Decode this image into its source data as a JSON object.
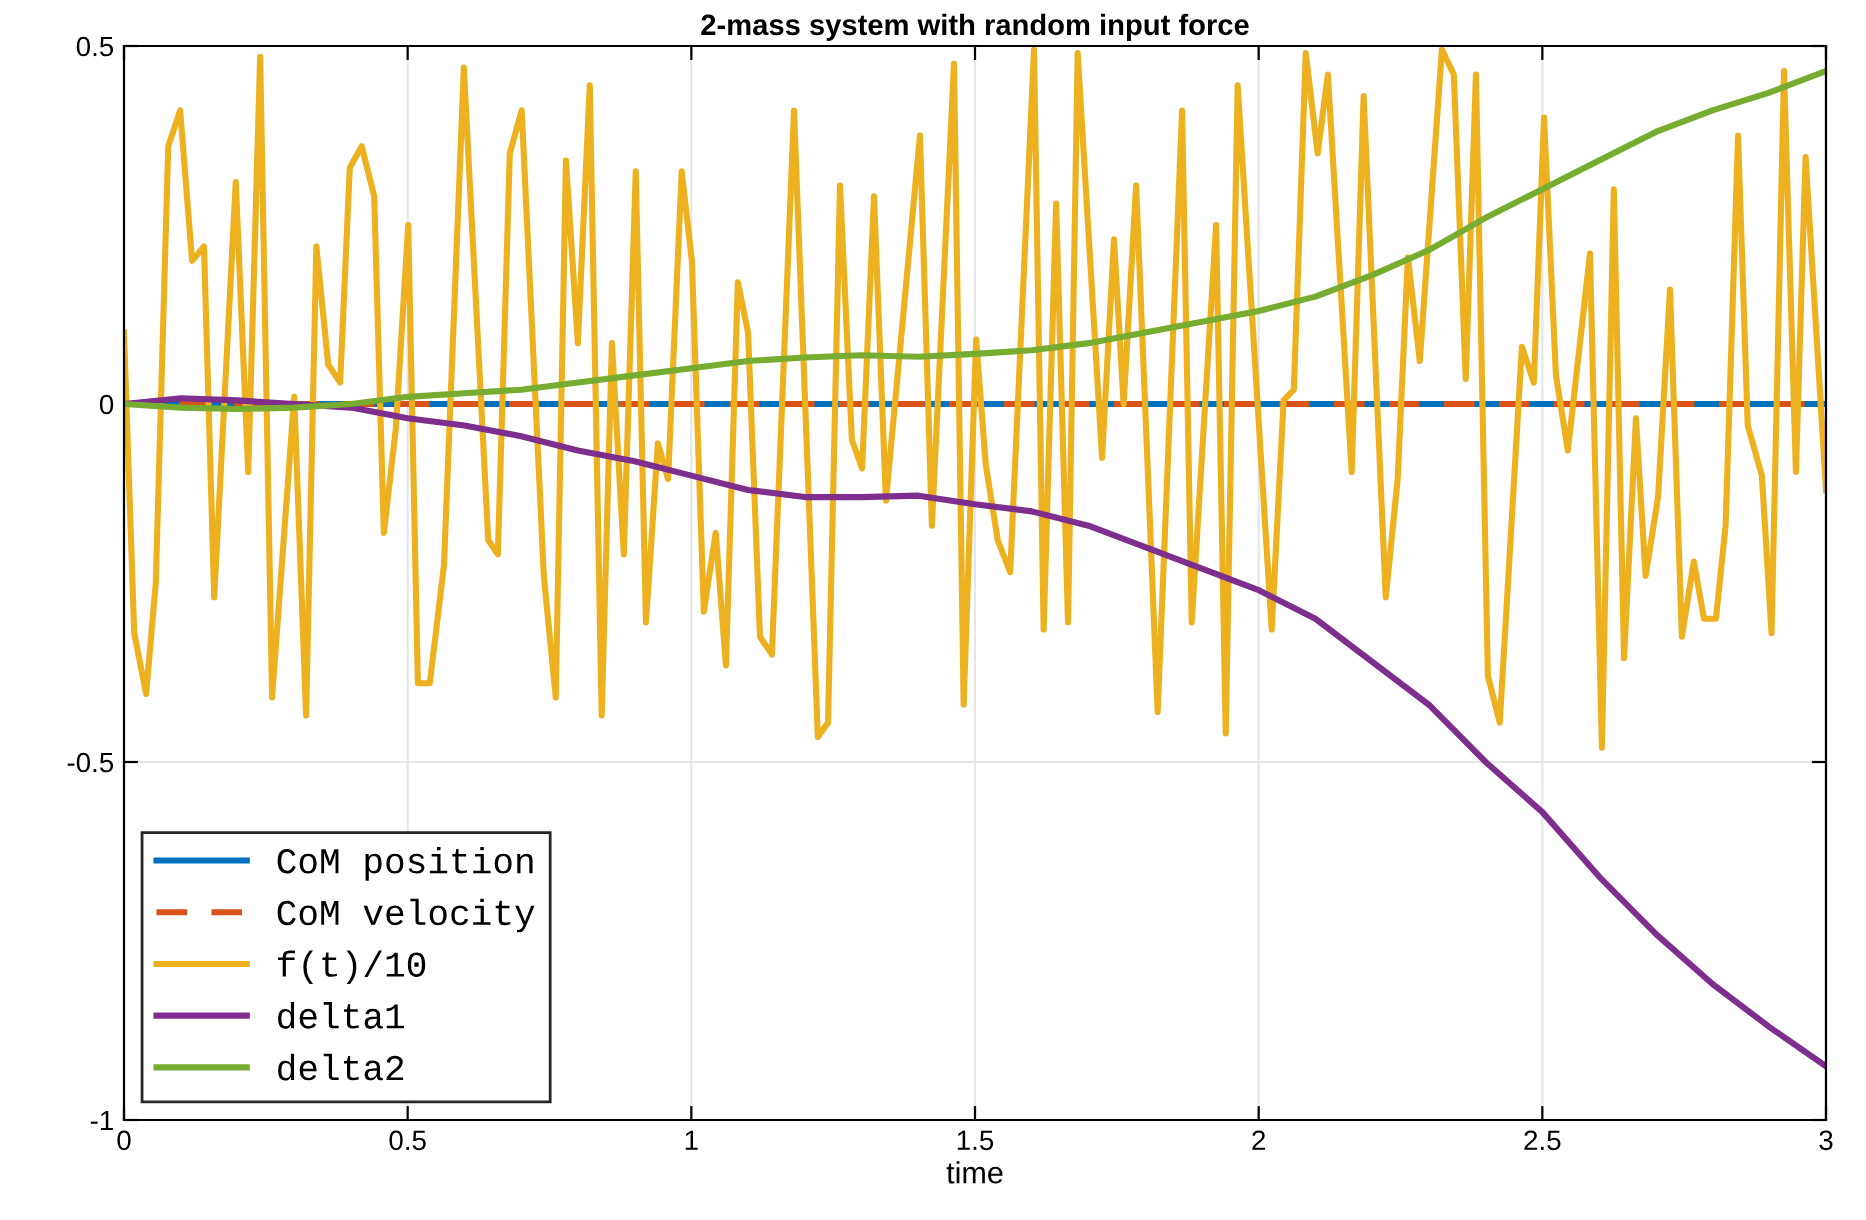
{
  "chart_data": {
    "type": "line",
    "title": "2-mass system with random input force",
    "xlabel": "time",
    "xlim": [
      0,
      3
    ],
    "ylim": [
      -1,
      0.5
    ],
    "xticks": [
      0,
      0.5,
      1,
      1.5,
      2,
      2.5,
      3
    ],
    "yticks": [
      -1,
      -0.5,
      0,
      0.5
    ],
    "grid": true,
    "legend": "bottom left",
    "series": [
      {
        "name": "CoM position",
        "color": "#0072bd",
        "line_style": "solid",
        "x": [
          0,
          3
        ],
        "values": [
          0,
          0
        ]
      },
      {
        "name": "CoM velocity",
        "color": "#d95319",
        "line_style": "dashed",
        "x": [
          0,
          3
        ],
        "values": [
          0,
          0
        ]
      },
      {
        "name": "f(t)/10",
        "color": "#edb120",
        "line_style": "solid",
        "x": [
          0,
          0.018,
          0.039,
          0.056,
          0.078,
          0.099,
          0.12,
          0.141,
          0.159,
          0.197,
          0.219,
          0.24,
          0.261,
          0.3,
          0.321,
          0.339,
          0.36,
          0.381,
          0.398,
          0.419,
          0.441,
          0.458,
          0.479,
          0.501,
          0.518,
          0.539,
          0.564,
          0.599,
          0.642,
          0.659,
          0.68,
          0.701,
          0.74,
          0.761,
          0.779,
          0.8,
          0.821,
          0.842,
          0.86,
          0.881,
          0.902,
          0.92,
          0.941,
          0.959,
          0.983,
          1.001,
          1.022,
          1.043,
          1.061,
          1.082,
          1.1,
          1.121,
          1.142,
          1.181,
          1.223,
          1.241,
          1.262,
          1.283,
          1.301,
          1.322,
          1.343,
          1.403,
          1.424,
          1.463,
          1.48,
          1.502,
          1.519,
          1.54,
          1.562,
          1.604,
          1.621,
          1.643,
          1.664,
          1.681,
          1.724,
          1.745,
          1.762,
          1.784,
          1.822,
          1.865,
          1.882,
          1.925,
          1.942,
          1.963,
          2.023,
          2.044,
          2.062,
          2.083,
          2.104,
          2.122,
          2.164,
          2.185,
          2.224,
          2.245,
          2.263,
          2.284,
          2.323,
          2.344,
          2.365,
          2.383,
          2.404,
          2.425,
          2.464,
          2.485,
          2.503,
          2.524,
          2.545,
          2.584,
          2.605,
          2.626,
          2.644,
          2.665,
          2.682,
          2.704,
          2.725,
          2.746,
          2.767,
          2.785,
          2.806,
          2.823,
          2.845,
          2.862,
          2.887,
          2.904,
          2.926,
          2.947,
          2.964,
          3.0
        ],
        "values": [
          0.1,
          -0.32,
          -0.405,
          -0.25,
          0.36,
          0.41,
          0.2,
          0.22,
          -0.27,
          0.31,
          -0.095,
          0.485,
          -0.41,
          0.01,
          -0.435,
          0.22,
          0.055,
          0.03,
          0.33,
          0.36,
          0.29,
          -0.18,
          -0.035,
          0.25,
          -0.39,
          -0.39,
          -0.225,
          0.47,
          -0.19,
          -0.21,
          0.35,
          0.41,
          -0.24,
          -0.41,
          0.34,
          0.085,
          0.445,
          -0.435,
          0.085,
          -0.21,
          0.325,
          -0.305,
          -0.055,
          -0.105,
          0.325,
          0.2,
          -0.29,
          -0.18,
          -0.365,
          0.17,
          0.1,
          -0.325,
          -0.35,
          0.41,
          -0.465,
          -0.445,
          0.305,
          -0.05,
          -0.09,
          0.29,
          -0.135,
          0.375,
          -0.17,
          0.475,
          -0.42,
          0.09,
          -0.085,
          -0.19,
          -0.235,
          0.495,
          -0.315,
          0.28,
          -0.305,
          0.49,
          -0.075,
          0.23,
          0.0,
          0.305,
          -0.43,
          0.41,
          -0.305,
          0.25,
          -0.46,
          0.445,
          -0.315,
          0.005,
          0.02,
          0.49,
          0.35,
          0.46,
          -0.095,
          0.43,
          -0.27,
          -0.105,
          0.205,
          0.06,
          0.495,
          0.46,
          0.035,
          0.46,
          -0.38,
          -0.445,
          0.08,
          0.03,
          0.4,
          0.04,
          -0.065,
          0.21,
          -0.48,
          0.3,
          -0.355,
          -0.02,
          -0.24,
          -0.13,
          0.16,
          -0.325,
          -0.22,
          -0.3,
          -0.3,
          -0.17,
          0.375,
          -0.03,
          -0.1,
          -0.32,
          0.465,
          -0.095,
          0.345,
          -0.12
        ]
      },
      {
        "name": "delta1",
        "color": "#7e2f8e",
        "line_style": "solid",
        "x": [
          0,
          0.1,
          0.2,
          0.3,
          0.4,
          0.5,
          0.6,
          0.7,
          0.8,
          0.9,
          1.0,
          1.1,
          1.2,
          1.3,
          1.4,
          1.5,
          1.6,
          1.7,
          1.8,
          1.9,
          2.0,
          2.1,
          2.2,
          2.3,
          2.4,
          2.5,
          2.6,
          2.7,
          2.8,
          2.9,
          3.0
        ],
        "values": [
          0,
          0.008,
          0.005,
          0,
          -0.005,
          -0.02,
          -0.03,
          -0.045,
          -0.065,
          -0.08,
          -0.1,
          -0.12,
          -0.13,
          -0.13,
          -0.128,
          -0.14,
          -0.15,
          -0.17,
          -0.2,
          -0.23,
          -0.26,
          -0.3,
          -0.36,
          -0.42,
          -0.5,
          -0.57,
          -0.66,
          -0.74,
          -0.81,
          -0.87,
          -0.925
        ]
      },
      {
        "name": "delta2",
        "color": "#77ac30",
        "line_style": "solid",
        "x": [
          0,
          0.1,
          0.2,
          0.3,
          0.4,
          0.5,
          0.6,
          0.7,
          0.8,
          0.9,
          1.0,
          1.1,
          1.2,
          1.3,
          1.4,
          1.5,
          1.6,
          1.7,
          1.8,
          1.9,
          2.0,
          2.1,
          2.2,
          2.3,
          2.4,
          2.5,
          2.6,
          2.7,
          2.8,
          2.9,
          3.0
        ],
        "values": [
          0,
          -0.005,
          -0.007,
          -0.005,
          0,
          0.01,
          0.015,
          0.02,
          0.03,
          0.04,
          0.05,
          0.06,
          0.065,
          0.068,
          0.066,
          0.07,
          0.075,
          0.085,
          0.1,
          0.115,
          0.13,
          0.15,
          0.18,
          0.215,
          0.26,
          0.3,
          0.34,
          0.38,
          0.41,
          0.435,
          0.465
        ]
      }
    ]
  }
}
